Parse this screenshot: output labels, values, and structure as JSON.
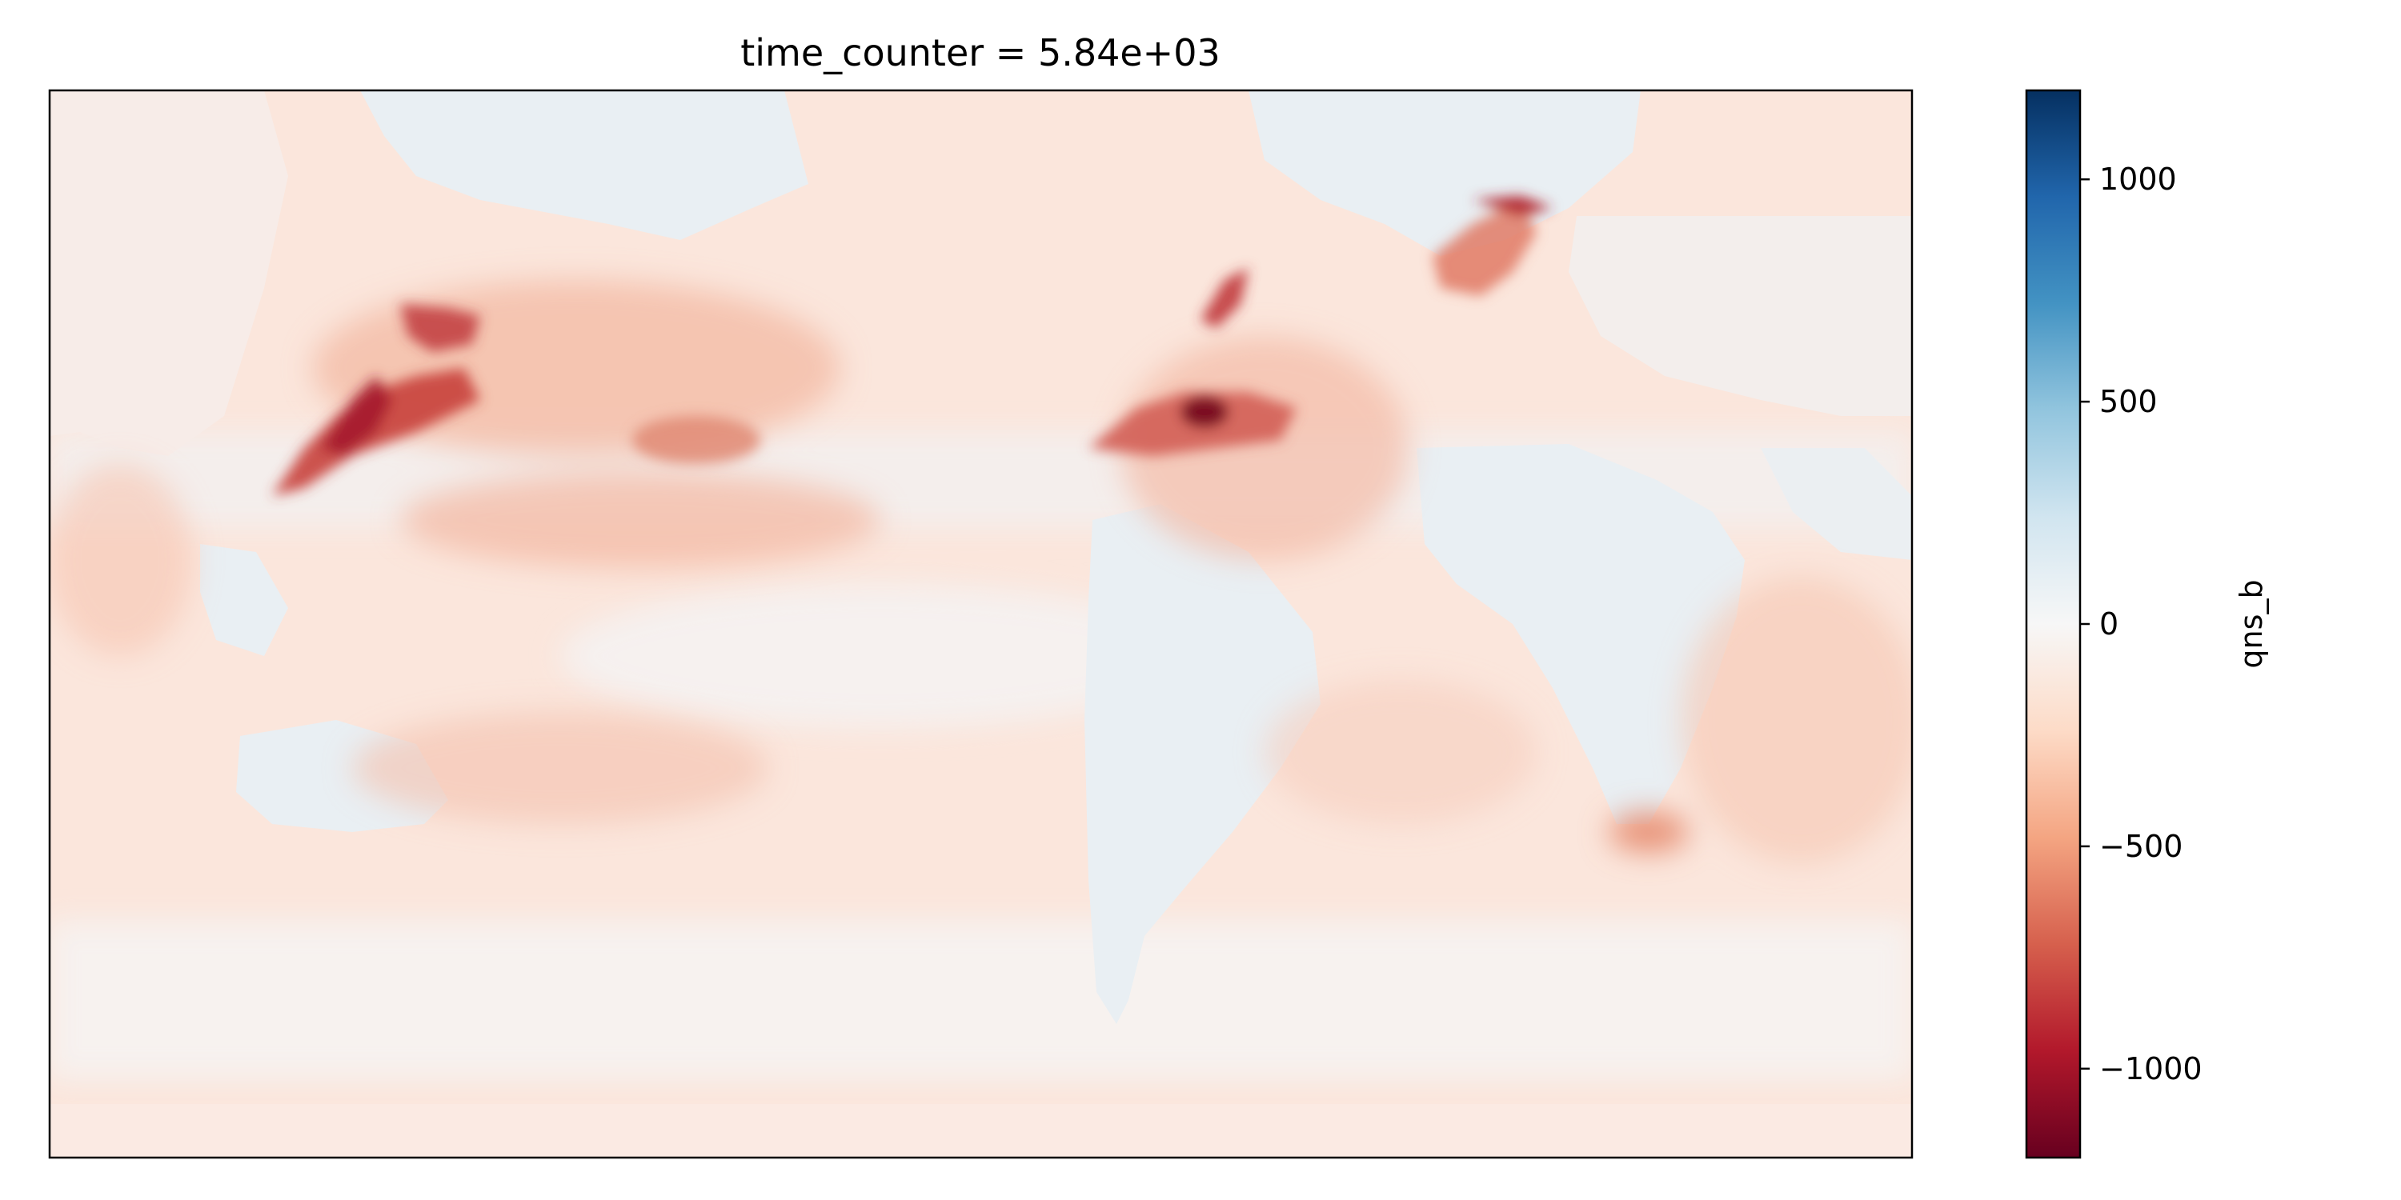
{
  "chart_data": {
    "type": "heatmap",
    "title": "time_counter = 5.84e+03",
    "xlabel": "",
    "ylabel": "",
    "x_axis_ticks": "none",
    "y_axis_ticks": "none",
    "colorbar": {
      "label": "qns_b",
      "colormap": "RdBu",
      "vmin": -1200,
      "vmax": 1200,
      "ticks": [
        -1000,
        -500,
        0,
        500,
        1000
      ],
      "tick_labels": [
        "−1000",
        "−500",
        "0",
        "500",
        "1000"
      ],
      "colors": [
        "#67001f",
        "#b2182b",
        "#d6604d",
        "#f4a582",
        "#fddbc7",
        "#f7f7f7",
        "#d1e5f0",
        "#92c5de",
        "#4393c3",
        "#2166ac",
        "#053061"
      ]
    },
    "grid": false,
    "field_description": "Mostly weak negative values (about -50 to -150) everywhere; near-zero/slightly positive over land masses; strongest negative patches (about -900 to -1150) along western boundary current regions in the northern mid-latitudes"
  }
}
